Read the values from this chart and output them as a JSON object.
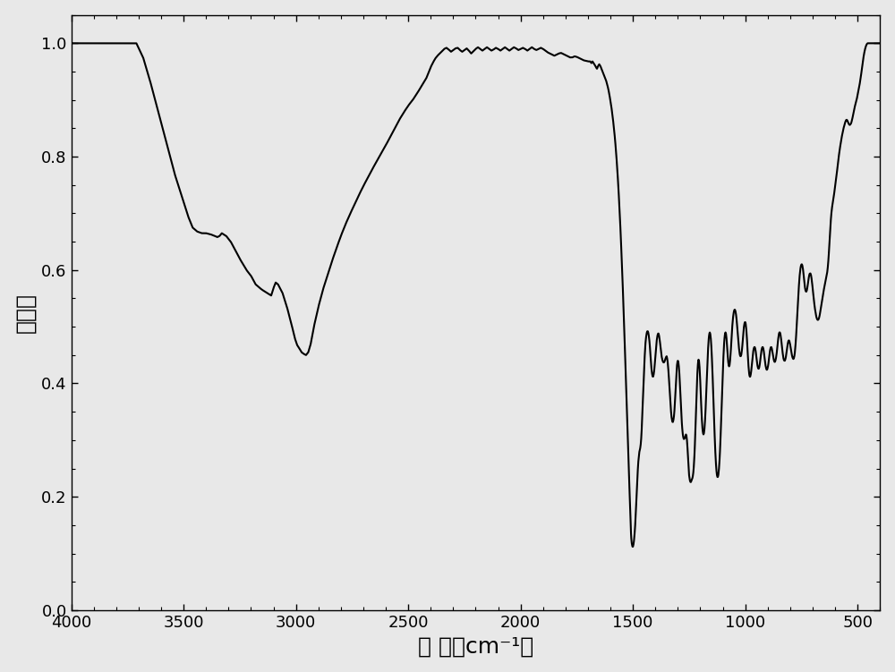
{
  "xlabel": "波 数（cm⁻¹）",
  "ylabel": "吸光度",
  "xlim": [
    4000,
    400
  ],
  "ylim": [
    0.0,
    1.05
  ],
  "xticks": [
    4000,
    3500,
    3000,
    2500,
    2000,
    1500,
    1000,
    500
  ],
  "yticks": [
    0.0,
    0.2,
    0.4,
    0.6,
    0.8,
    1.0
  ],
  "line_color": "#000000",
  "line_width": 1.5,
  "background_color": "#e8e8e8",
  "axis_background": "#e8e8e8",
  "label_fontsize": 18,
  "tick_fontsize": 13
}
